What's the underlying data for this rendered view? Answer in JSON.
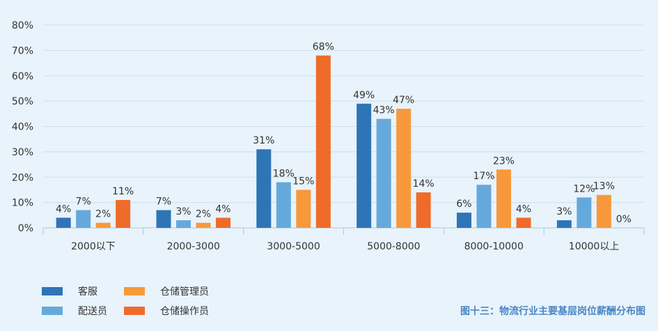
{
  "chart_data": {
    "type": "bar",
    "categories": [
      "2000以下",
      "2000-3000",
      "3000-5000",
      "5000-8000",
      "8000-10000",
      "10000以上"
    ],
    "series": [
      {
        "name": "客服",
        "color": "#2e75b6",
        "values": [
          4,
          7,
          31,
          49,
          6,
          3
        ],
        "labels": [
          "4%",
          "7%",
          "31%",
          "49%",
          "6%",
          "3%"
        ]
      },
      {
        "name": "配送员",
        "color": "#65a9dc",
        "values": [
          7,
          3,
          18,
          43,
          17,
          12
        ],
        "labels": [
          "7%",
          "3%",
          "18%",
          "43%",
          "17%",
          "12%"
        ]
      },
      {
        "name": "仓储管理员",
        "color": "#f7993a",
        "values": [
          2,
          2,
          15,
          47,
          23,
          13
        ],
        "labels": [
          "2%",
          "2%",
          "15%",
          "47%",
          "23%",
          "13%"
        ]
      },
      {
        "name": "仓储操作员",
        "color": "#ef6b2a",
        "values": [
          11,
          4,
          68,
          14,
          4,
          0
        ],
        "labels": [
          "11%",
          "4%",
          "68%",
          "14%",
          "4%",
          "0%"
        ]
      }
    ],
    "y_ticks": [
      "0%",
      "10%",
      "20%",
      "30%",
      "40%",
      "50%",
      "60%",
      "70%",
      "80%"
    ],
    "ylim": [
      0,
      80
    ],
    "grid": true,
    "legend_position": "bottom-left",
    "caption": "图十三：物流行业主要基层岗位薪酬分布图",
    "caption_color": "#4a86c5"
  }
}
